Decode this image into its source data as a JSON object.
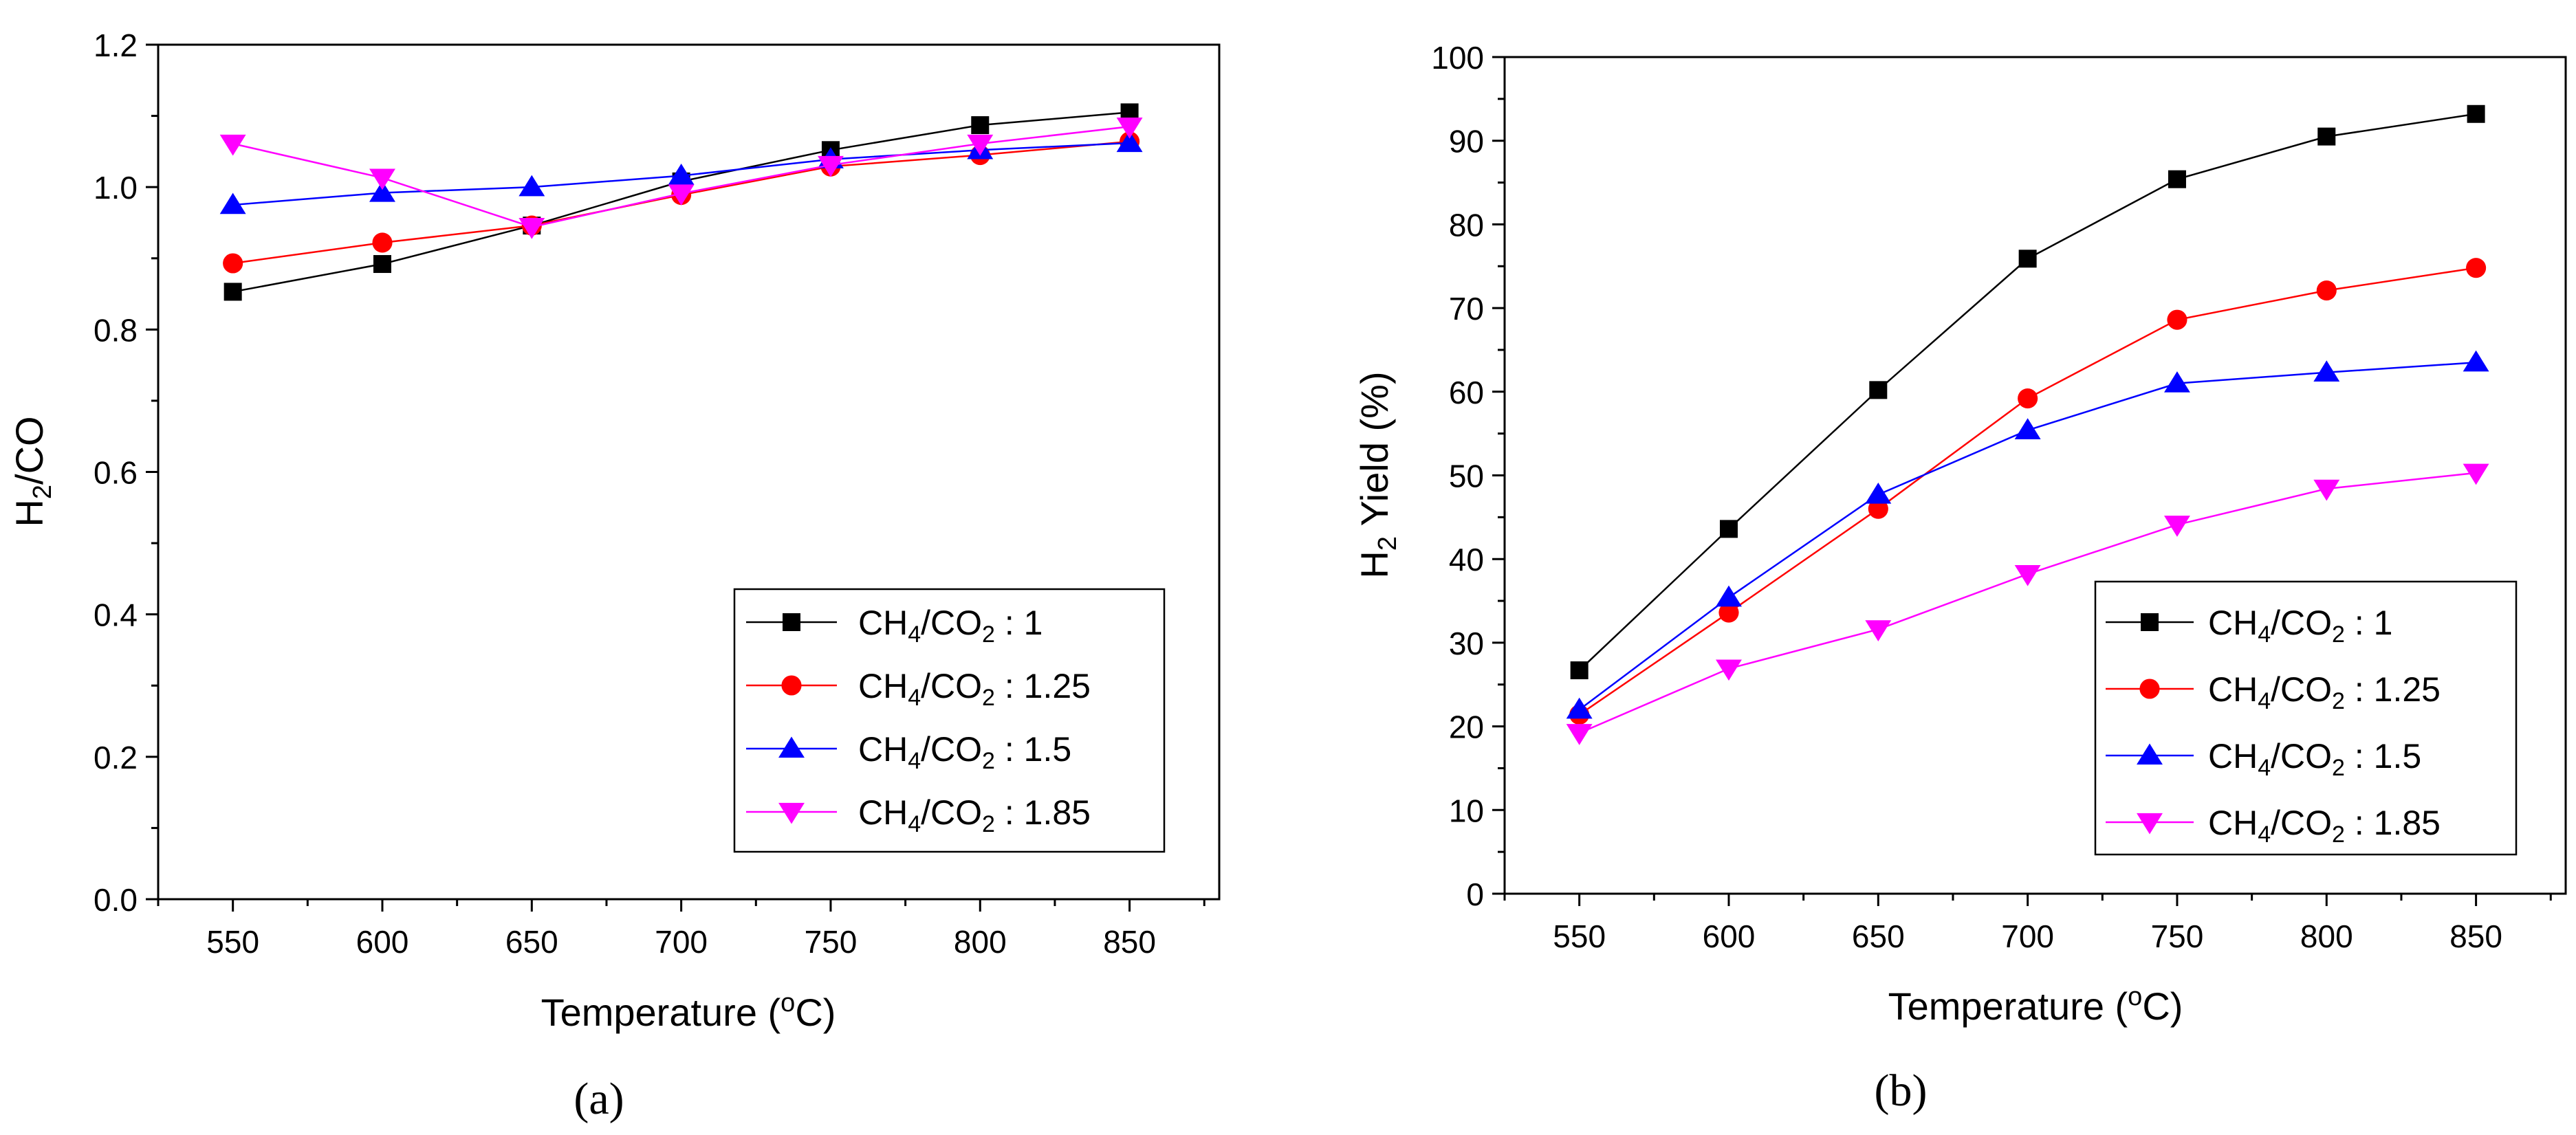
{
  "chart_data": [
    {
      "type": "line",
      "panel_label": "(a)",
      "xlabel": "Temperature (°C)",
      "ylabel": "H2/CO",
      "x": [
        550,
        600,
        650,
        700,
        750,
        800,
        850
      ],
      "xticks": [
        "550",
        "600",
        "650",
        "700",
        "750",
        "800",
        "850"
      ],
      "xlim": [
        525,
        880
      ],
      "yticks": [
        "0.0",
        "0.2",
        "0.4",
        "0.6",
        "0.8",
        "1.0",
        "1.2"
      ],
      "ylim": [
        0,
        1.2
      ],
      "grid": false,
      "legend_position": "bottom-right",
      "series": [
        {
          "name": "CH4/CO2 : 1",
          "color": "#000000",
          "marker": "square",
          "values": [
            0.853,
            0.892,
            0.946,
            1.008,
            1.052,
            1.087,
            1.105
          ]
        },
        {
          "name": "CH4/CO2 : 1.25",
          "color": "#ff0000",
          "marker": "circle",
          "values": [
            0.893,
            0.922,
            0.946,
            0.989,
            1.029,
            1.045,
            1.064
          ]
        },
        {
          "name": "CH4/CO2 : 1.5",
          "color": "#0000ff",
          "marker": "triangle-up",
          "values": [
            0.975,
            0.992,
            1.0,
            1.016,
            1.039,
            1.052,
            1.062
          ]
        },
        {
          "name": "CH4/CO2 : 1.85",
          "color": "#ff00ff",
          "marker": "triangle-down",
          "values": [
            1.061,
            1.013,
            0.944,
            0.991,
            1.031,
            1.061,
            1.085
          ]
        }
      ]
    },
    {
      "type": "line",
      "panel_label": "(b)",
      "xlabel": "Temperature (°C)",
      "ylabel": "H2 Yield (%)",
      "x": [
        550,
        600,
        650,
        700,
        750,
        800,
        850
      ],
      "xticks": [
        "550",
        "600",
        "650",
        "700",
        "750",
        "800",
        "850"
      ],
      "xlim": [
        525,
        880
      ],
      "yticks": [
        "0",
        "10",
        "20",
        "30",
        "40",
        "50",
        "60",
        "70",
        "80",
        "90",
        "100"
      ],
      "ylim": [
        0,
        100
      ],
      "grid": false,
      "legend_position": "bottom-right",
      "series": [
        {
          "name": "CH4/CO2 : 1",
          "color": "#000000",
          "marker": "square",
          "values": [
            26.7,
            43.6,
            60.2,
            75.9,
            85.4,
            90.5,
            93.2
          ]
        },
        {
          "name": "CH4/CO2 : 1.25",
          "color": "#ff0000",
          "marker": "circle",
          "values": [
            21.4,
            33.6,
            46.0,
            59.2,
            68.6,
            72.1,
            74.8
          ]
        },
        {
          "name": "CH4/CO2 : 1.5",
          "color": "#0000ff",
          "marker": "triangle-up",
          "values": [
            22.0,
            35.4,
            47.7,
            55.4,
            61.0,
            62.3,
            63.5
          ]
        },
        {
          "name": "CH4/CO2 : 1.85",
          "color": "#ff00ff",
          "marker": "triangle-down",
          "values": [
            19.2,
            26.9,
            31.6,
            38.2,
            44.1,
            48.4,
            50.3
          ]
        }
      ]
    }
  ]
}
